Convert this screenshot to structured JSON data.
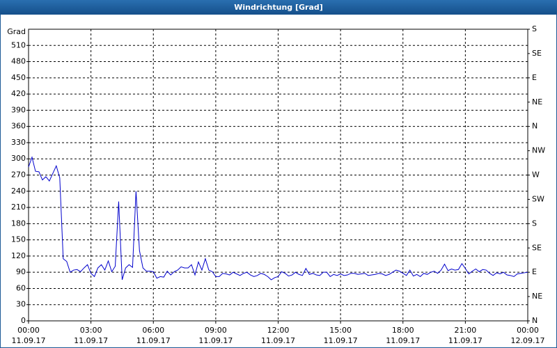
{
  "chart_data": {
    "type": "line",
    "title": "Windrichtung [Grad]",
    "y_label": "Grad",
    "color": "#0000cc",
    "grid": true,
    "x": [
      0,
      10,
      20,
      30,
      40,
      50,
      60,
      70,
      80,
      90,
      100,
      110,
      120,
      130,
      140,
      150,
      160,
      170,
      180,
      190,
      200,
      210,
      220,
      230,
      240,
      250,
      260,
      270,
      280,
      290,
      300,
      310,
      320,
      330,
      340,
      350,
      360,
      370,
      380,
      390,
      400,
      410,
      420,
      430,
      440,
      450,
      460,
      470,
      480,
      490,
      500,
      510,
      520,
      530,
      540,
      550,
      560,
      570,
      580,
      590,
      600,
      610,
      620,
      630,
      640,
      650,
      660,
      670,
      680,
      690,
      700,
      710,
      720,
      730,
      740,
      750,
      760,
      770,
      780,
      790,
      800,
      810,
      820,
      830,
      840,
      850,
      860,
      870,
      880,
      890,
      900,
      910,
      920,
      930,
      940,
      950,
      960,
      970,
      980,
      990,
      1000,
      1010,
      1020,
      1030,
      1040,
      1050,
      1060,
      1070,
      1080,
      1090,
      1100,
      1110,
      1120,
      1130,
      1140,
      1150,
      1160,
      1170,
      1180,
      1190,
      1200,
      1210,
      1220,
      1230,
      1240,
      1250,
      1260,
      1270,
      1280,
      1290,
      1300,
      1310,
      1320,
      1330,
      1340,
      1350,
      1360,
      1370,
      1380,
      1390,
      1400,
      1410,
      1420,
      1430,
      1440
    ],
    "values": [
      285,
      303,
      277,
      276,
      261,
      267,
      259,
      273,
      287,
      265,
      115,
      110,
      90,
      94,
      95,
      91,
      98,
      104,
      88,
      82,
      98,
      104,
      94,
      111,
      91,
      101,
      221,
      76,
      98,
      104,
      99,
      240,
      130,
      98,
      92,
      92,
      91,
      79,
      82,
      81,
      92,
      85,
      91,
      94,
      100,
      98,
      98,
      104,
      85,
      109,
      94,
      115,
      94,
      91,
      82,
      82,
      88,
      87,
      85,
      90,
      87,
      84,
      88,
      90,
      85,
      82,
      84,
      88,
      86,
      82,
      76,
      80,
      82,
      91,
      88,
      83,
      85,
      90,
      86,
      84,
      97,
      86,
      88,
      85,
      84,
      90,
      90,
      82,
      86,
      84,
      87,
      84,
      85,
      88,
      88,
      86,
      87,
      88,
      84,
      85,
      86,
      88,
      87,
      84,
      86,
      90,
      94,
      92,
      88,
      84,
      94,
      83,
      86,
      82,
      88,
      86,
      90,
      92,
      88,
      94,
      105,
      93,
      96,
      94,
      95,
      106,
      97,
      87,
      92,
      96,
      91,
      95,
      94,
      88,
      84,
      89,
      87,
      90,
      85,
      84,
      82,
      87,
      88,
      89,
      90
    ],
    "xlim": [
      0,
      1440
    ],
    "xticks": [
      {
        "value": 0,
        "label": "00:00"
      },
      {
        "value": 180,
        "label": "03:00"
      },
      {
        "value": 360,
        "label": "06:00"
      },
      {
        "value": 540,
        "label": "09:00"
      },
      {
        "value": 720,
        "label": "12:00"
      },
      {
        "value": 900,
        "label": "15:00"
      },
      {
        "value": 1080,
        "label": "18:00"
      },
      {
        "value": 1260,
        "label": "21:00"
      },
      {
        "value": 1440,
        "label": "00:00"
      }
    ],
    "xtick_dates": [
      "11.09.17",
      "11.09.17",
      "11.09.17",
      "11.09.17",
      "11.09.17",
      "11.09.17",
      "11.09.17",
      "11.09.17",
      "12.09.17"
    ],
    "ylim": [
      0,
      540
    ],
    "yticks": [
      0,
      30,
      60,
      90,
      120,
      150,
      180,
      210,
      240,
      270,
      300,
      330,
      360,
      390,
      420,
      450,
      480,
      510
    ],
    "y2lim": [
      0,
      540
    ],
    "y2ticks": [
      {
        "value": 0,
        "label": "N"
      },
      {
        "value": 45,
        "label": "NE"
      },
      {
        "value": 90,
        "label": "E"
      },
      {
        "value": 135,
        "label": "SE"
      },
      {
        "value": 180,
        "label": "S"
      },
      {
        "value": 225,
        "label": "SW"
      },
      {
        "value": 270,
        "label": "W"
      },
      {
        "value": 315,
        "label": "NW"
      },
      {
        "value": 360,
        "label": "N"
      },
      {
        "value": 405,
        "label": "NE"
      },
      {
        "value": 450,
        "label": "E"
      },
      {
        "value": 495,
        "label": "SE"
      },
      {
        "value": 540,
        "label": "S"
      }
    ]
  }
}
